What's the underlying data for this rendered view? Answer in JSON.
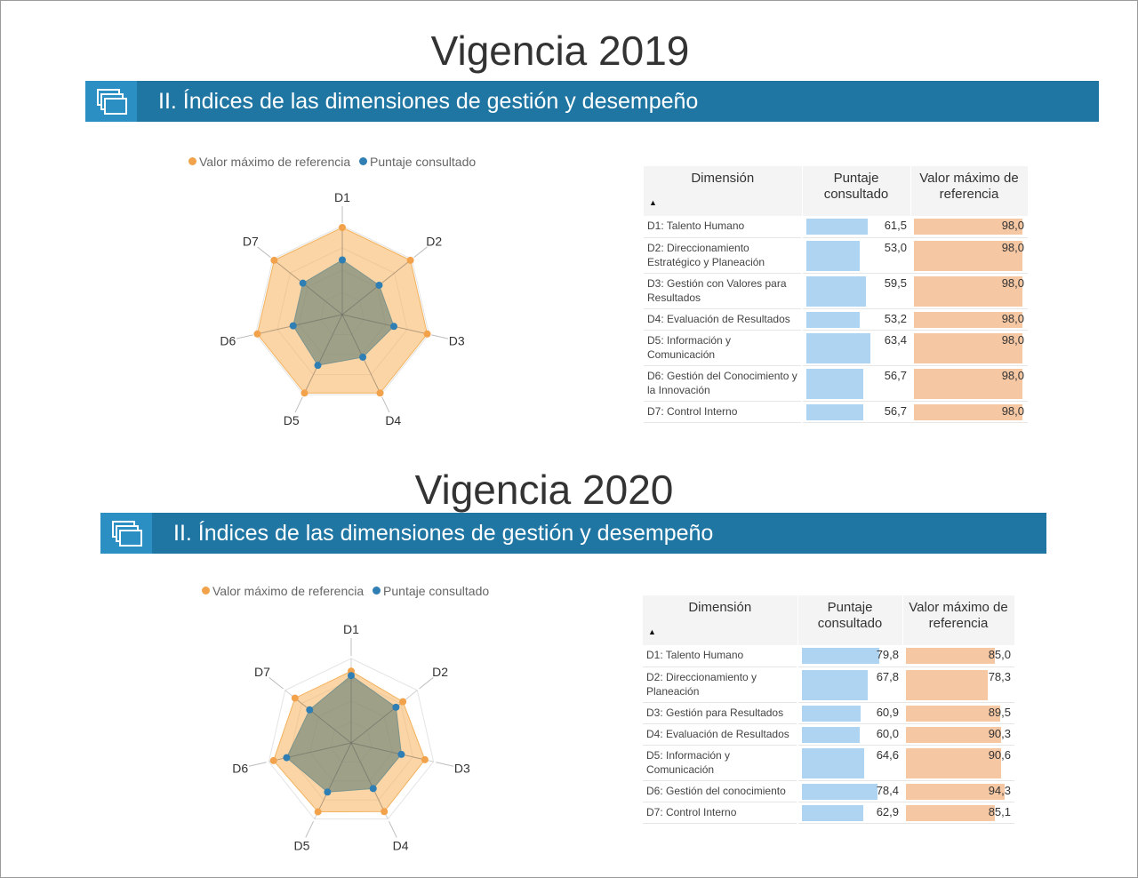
{
  "colors": {
    "reference": "#f2a24b",
    "score": "#2f7fb5",
    "banner": "#1f76a3",
    "score_bar": "#aed4f2",
    "reference_bar": "#f6c7a3"
  },
  "banner_icon": "stacked-windows-icon",
  "sections": [
    {
      "title": "Vigencia 2019",
      "banner_text": "II. Índices de las dimensiones de gestión y desempeño",
      "legend": {
        "reference": "Valor máximo de referencia",
        "score": "Puntaje consultado"
      },
      "chart_data": {
        "type": "radar",
        "axes": [
          "D1",
          "D2",
          "D3",
          "D4",
          "D5",
          "D6",
          "D7"
        ],
        "range": [
          0,
          100
        ],
        "series": [
          {
            "name": "Valor máximo de referencia",
            "values": [
              98.0,
              98.0,
              98.0,
              98.0,
              98.0,
              98.0,
              98.0
            ]
          },
          {
            "name": "Puntaje consultado",
            "values": [
              61.5,
              53.0,
              59.5,
              53.2,
              63.4,
              56.7,
              56.7
            ]
          }
        ]
      },
      "table": {
        "headers": {
          "dimension": "Dimensión",
          "score": "Puntaje consultado",
          "reference": "Valor máximo de referencia"
        },
        "sort_arrow": "▲",
        "rows": [
          {
            "dimension": "D1: Talento Humano",
            "score": "61,5",
            "score_value": 61.5,
            "reference": "98,0",
            "reference_value": 98.0
          },
          {
            "dimension": "D2: Direccionamiento Estratégico y Planeación",
            "score": "53,0",
            "score_value": 53.0,
            "reference": "98,0",
            "reference_value": 98.0
          },
          {
            "dimension": "D3: Gestión con Valores para Resultados",
            "score": "59,5",
            "score_value": 59.5,
            "reference": "98,0",
            "reference_value": 98.0
          },
          {
            "dimension": "D4: Evaluación de Resultados",
            "score": "53,2",
            "score_value": 53.2,
            "reference": "98,0",
            "reference_value": 98.0
          },
          {
            "dimension": "D5: Información y Comunicación",
            "score": "63,4",
            "score_value": 63.4,
            "reference": "98,0",
            "reference_value": 98.0
          },
          {
            "dimension": "D6: Gestión del Conocimiento y la Innovación",
            "score": "56,7",
            "score_value": 56.7,
            "reference": "98,0",
            "reference_value": 98.0
          },
          {
            "dimension": "D7: Control Interno",
            "score": "56,7",
            "score_value": 56.7,
            "reference": "98,0",
            "reference_value": 98.0
          }
        ]
      }
    },
    {
      "title": "Vigencia 2020",
      "banner_text": "II. Índices de las dimensiones de gestión y desempeño",
      "legend": {
        "reference": "Valor máximo de referencia",
        "score": "Puntaje consultado"
      },
      "chart_data": {
        "type": "radar",
        "axes": [
          "D1",
          "D2",
          "D3",
          "D4",
          "D5",
          "D6",
          "D7"
        ],
        "range": [
          0,
          100
        ],
        "series": [
          {
            "name": "Valor máximo de referencia",
            "values": [
              85.0,
              78.3,
              89.5,
              90.3,
              90.6,
              94.3,
              85.1
            ]
          },
          {
            "name": "Puntaje consultado",
            "values": [
              79.8,
              67.8,
              60.9,
              60.0,
              64.6,
              78.4,
              62.9
            ]
          }
        ]
      },
      "table": {
        "headers": {
          "dimension": "Dimensión",
          "score": "Puntaje consultado",
          "reference": "Valor máximo de referencia"
        },
        "sort_arrow": "▲",
        "rows": [
          {
            "dimension": "D1: Talento Humano",
            "score": "79,8",
            "score_value": 79.8,
            "reference": "85,0",
            "reference_value": 85.0
          },
          {
            "dimension": "D2: Direccionamiento y Planeación",
            "score": "67,8",
            "score_value": 67.8,
            "reference": "78,3",
            "reference_value": 78.3
          },
          {
            "dimension": "D3: Gestión para Resultados",
            "score": "60,9",
            "score_value": 60.9,
            "reference": "89,5",
            "reference_value": 89.5
          },
          {
            "dimension": "D4: Evaluación de Resultados",
            "score": "60,0",
            "score_value": 60.0,
            "reference": "90,3",
            "reference_value": 90.3
          },
          {
            "dimension": "D5: Información y Comunicación",
            "score": "64,6",
            "score_value": 64.6,
            "reference": "90,6",
            "reference_value": 90.6
          },
          {
            "dimension": "D6: Gestión del conocimiento",
            "score": "78,4",
            "score_value": 78.4,
            "reference": "94,3",
            "reference_value": 94.3
          },
          {
            "dimension": "D7: Control Interno",
            "score": "62,9",
            "score_value": 62.9,
            "reference": "85,1",
            "reference_value": 85.1
          }
        ]
      }
    }
  ]
}
